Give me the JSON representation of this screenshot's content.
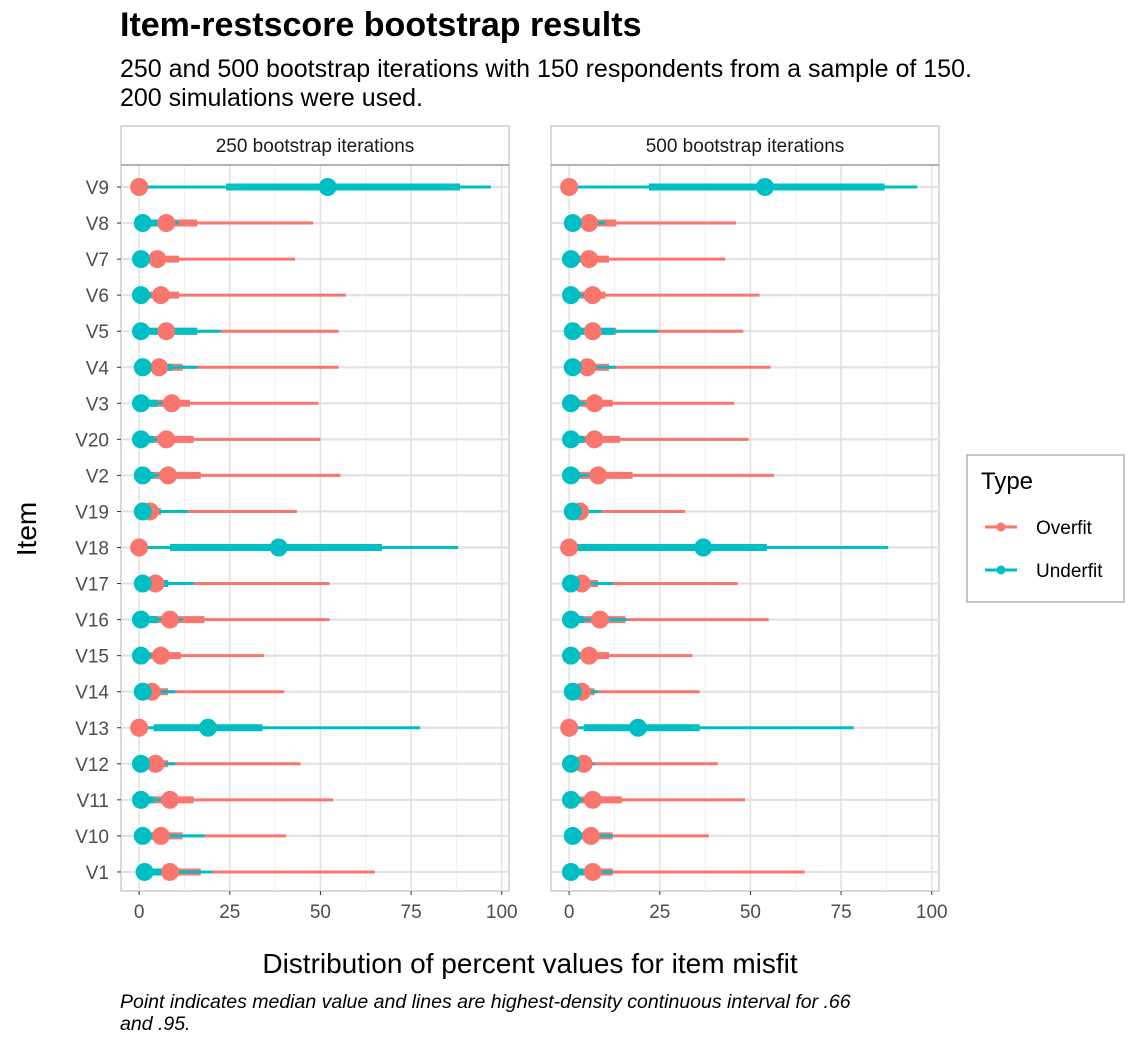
{
  "chart_data": {
    "type": "interval-dot",
    "title": "Item-restscore bootstrap results",
    "subtitle": "250 and 500 bootstrap iterations with 150 respondents from a sample of 150. 200 simulations were used.",
    "caption": "Point indicates median value and lines are highest-density continuous interval for .66 and .95.",
    "xlabel": "Distribution of percent values for item misfit",
    "ylabel": "Item",
    "xlim": [
      -5,
      102
    ],
    "xticks": [
      0,
      25,
      50,
      75,
      100
    ],
    "grid": true,
    "legend": {
      "title": "Type",
      "position": "right",
      "entries": [
        {
          "name": "Overfit",
          "color": "#F8766D"
        },
        {
          "name": "Underfit",
          "color": "#00BFC4"
        }
      ]
    },
    "categories": [
      "V9",
      "V8",
      "V7",
      "V6",
      "V5",
      "V4",
      "V3",
      "V20",
      "V2",
      "V19",
      "V18",
      "V17",
      "V16",
      "V15",
      "V14",
      "V13",
      "V12",
      "V11",
      "V10",
      "V1"
    ],
    "panels": [
      {
        "label": "250 bootstrap iterations",
        "series": [
          {
            "name": "Overfit",
            "median": [
              0,
              7.5,
              5,
              6,
              7.5,
              5.5,
              9,
              7.5,
              8,
              3,
              0,
              4.5,
              8.5,
              6,
              3.5,
              0,
              4.5,
              8.5,
              6,
              8.5
            ],
            "hdi66": [
              [
                0,
                0
              ],
              [
                2,
                16
              ],
              [
                1,
                11
              ],
              [
                1,
                11
              ],
              [
                2,
                16
              ],
              [
                1,
                12
              ],
              [
                2,
                14
              ],
              [
                2,
                15
              ],
              [
                2,
                17
              ],
              [
                0,
                6
              ],
              [
                0,
                0
              ],
              [
                0,
                8
              ],
              [
                3,
                18
              ],
              [
                1,
                11.5
              ],
              [
                0,
                8
              ],
              [
                0,
                0
              ],
              [
                0,
                8
              ],
              [
                2,
                15
              ],
              [
                1,
                12
              ],
              [
                2,
                17
              ]
            ],
            "hdi95": [
              [
                0,
                0
              ],
              [
                0,
                48
              ],
              [
                0,
                43
              ],
              [
                0,
                57
              ],
              [
                0,
                55
              ],
              [
                0,
                55
              ],
              [
                0,
                49.5
              ],
              [
                0,
                50
              ],
              [
                0,
                55.5
              ],
              [
                0,
                43.5
              ],
              [
                0,
                0
              ],
              [
                0,
                52.5
              ],
              [
                0,
                52.5
              ],
              [
                0,
                34.5
              ],
              [
                0,
                40
              ],
              [
                0,
                0
              ],
              [
                0,
                44.5
              ],
              [
                0,
                53.5
              ],
              [
                0,
                40.5
              ],
              [
                0,
                65
              ]
            ]
          },
          {
            "name": "Underfit",
            "median": [
              52,
              1,
              0.5,
              0.5,
              0.5,
              1,
              0.5,
              0.5,
              1,
              1,
              38.5,
              1,
              0.5,
              0.5,
              1,
              19,
              0.5,
              0.5,
              1,
              1.5
            ],
            "hdi66": [
              [
                24,
                88.5
              ],
              [
                0,
                8
              ],
              [
                0,
                4
              ],
              [
                0,
                3
              ],
              [
                0,
                16
              ],
              [
                0,
                9
              ],
              [
                0,
                5
              ],
              [
                0,
                4
              ],
              [
                0,
                4
              ],
              [
                0,
                4
              ],
              [
                8.5,
                67
              ],
              [
                0,
                8
              ],
              [
                0,
                5
              ],
              [
                0,
                3
              ],
              [
                0,
                4
              ],
              [
                4,
                34
              ],
              [
                0,
                4
              ],
              [
                0,
                4
              ],
              [
                0,
                5
              ],
              [
                0,
                10
              ]
            ],
            "hdi95": [
              [
                0,
                97
              ],
              [
                0,
                11
              ],
              [
                0,
                7
              ],
              [
                0,
                8
              ],
              [
                0,
                22.5
              ],
              [
                0,
                16
              ],
              [
                0,
                8
              ],
              [
                0,
                7
              ],
              [
                0,
                10
              ],
              [
                0,
                13.5
              ],
              [
                0,
                88
              ],
              [
                0,
                15
              ],
              [
                0,
                12
              ],
              [
                0,
                7
              ],
              [
                0,
                10
              ],
              [
                0,
                77.5
              ],
              [
                0,
                10
              ],
              [
                0,
                9
              ],
              [
                0,
                18
              ],
              [
                0,
                20
              ]
            ]
          }
        ]
      },
      {
        "label": "500 bootstrap iterations",
        "series": [
          {
            "name": "Overfit",
            "median": [
              0,
              5.5,
              5.5,
              6.5,
              6.5,
              5,
              7,
              7,
              8,
              3,
              0,
              3.5,
              8.5,
              5.5,
              3.5,
              0,
              4,
              6.5,
              6,
              6.5
            ],
            "hdi66": [
              [
                0,
                0
              ],
              [
                1,
                13
              ],
              [
                1,
                11
              ],
              [
                1,
                10
              ],
              [
                1,
                13
              ],
              [
                1,
                11
              ],
              [
                1,
                12
              ],
              [
                2,
                14
              ],
              [
                2,
                17.5
              ],
              [
                0,
                5
              ],
              [
                0,
                0
              ],
              [
                0,
                8
              ],
              [
                2,
                15.5
              ],
              [
                1,
                11
              ],
              [
                0,
                7
              ],
              [
                0,
                0
              ],
              [
                0,
                6
              ],
              [
                1,
                14.5
              ],
              [
                1,
                12
              ],
              [
                1,
                12
              ]
            ],
            "hdi95": [
              [
                0,
                0
              ],
              [
                0,
                46
              ],
              [
                0,
                43
              ],
              [
                0,
                52.5
              ],
              [
                0,
                48
              ],
              [
                0,
                55.5
              ],
              [
                0,
                45.5
              ],
              [
                0,
                49.5
              ],
              [
                0,
                56.5
              ],
              [
                0,
                32
              ],
              [
                0,
                0
              ],
              [
                0,
                46.5
              ],
              [
                0,
                55
              ],
              [
                0,
                34
              ],
              [
                0,
                36
              ],
              [
                0,
                0
              ],
              [
                0,
                41
              ],
              [
                0,
                48.5
              ],
              [
                0,
                38.5
              ],
              [
                0,
                65
              ]
            ]
          },
          {
            "name": "Underfit",
            "median": [
              54,
              1,
              0.5,
              0.5,
              1,
              1,
              0.5,
              0.5,
              0.5,
              1,
              37,
              0.5,
              0.5,
              0.5,
              1,
              19,
              0.5,
              0.5,
              1,
              0.5
            ],
            "hdi66": [
              [
                22,
                87
              ],
              [
                0,
                6
              ],
              [
                0,
                3
              ],
              [
                0,
                3
              ],
              [
                0,
                12.5
              ],
              [
                0,
                6
              ],
              [
                0,
                3
              ],
              [
                0,
                4
              ],
              [
                0,
                3
              ],
              [
                0,
                4
              ],
              [
                2,
                54.5
              ],
              [
                0,
                4
              ],
              [
                0,
                4
              ],
              [
                0,
                3
              ],
              [
                0,
                4
              ],
              [
                4,
                36
              ],
              [
                0,
                3
              ],
              [
                0,
                3
              ],
              [
                0,
                4
              ],
              [
                0,
                4
              ]
            ],
            "hdi95": [
              [
                0,
                96
              ],
              [
                0,
                10
              ],
              [
                0,
                6
              ],
              [
                0,
                6
              ],
              [
                0,
                24.5
              ],
              [
                0,
                13
              ],
              [
                0,
                6
              ],
              [
                0,
                7
              ],
              [
                0,
                8
              ],
              [
                0,
                9
              ],
              [
                0,
                88
              ],
              [
                0,
                12
              ],
              [
                0,
                16
              ],
              [
                0,
                6
              ],
              [
                0,
                8
              ],
              [
                0,
                78.5
              ],
              [
                0,
                7
              ],
              [
                0,
                7
              ],
              [
                0,
                12
              ],
              [
                0,
                12
              ]
            ]
          }
        ]
      }
    ]
  }
}
